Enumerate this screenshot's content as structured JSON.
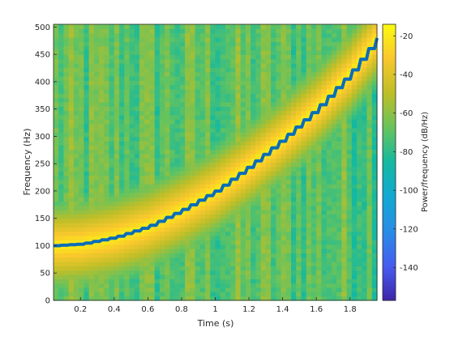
{
  "chart_data": {
    "type": "heatmap",
    "title": "",
    "xlabel": "Time (s)",
    "ylabel": "Frequency (Hz)",
    "colorbar_label": "Power/frequency (dB/Hz)",
    "colormap": "parula",
    "xlim": [
      0.04,
      1.96
    ],
    "ylim": [
      0,
      505
    ],
    "clim": [
      -157,
      -14
    ],
    "x_ticks": [
      "0.2",
      "0.4",
      "0.6",
      "0.8",
      "1",
      "1.2",
      "1.4",
      "1.6",
      "1.8"
    ],
    "y_ticks": [
      "0",
      "50",
      "100",
      "150",
      "200",
      "250",
      "300",
      "350",
      "400",
      "450",
      "500"
    ],
    "colorbar_ticks": [
      "-20",
      "-40",
      "-60",
      "-80",
      "-100",
      "-120",
      "-140"
    ],
    "background_level_db": -70,
    "ridge_peak_db": -18,
    "ridge_line_color": "#0a6db8",
    "ridge": {
      "time_s": [
        0.04,
        0.2,
        0.4,
        0.6,
        0.8,
        1.0,
        1.2,
        1.4,
        1.6,
        1.8,
        1.96
      ],
      "freq_hz": [
        100,
        103,
        115,
        135,
        165,
        200,
        245,
        295,
        350,
        415,
        480
      ]
    }
  }
}
